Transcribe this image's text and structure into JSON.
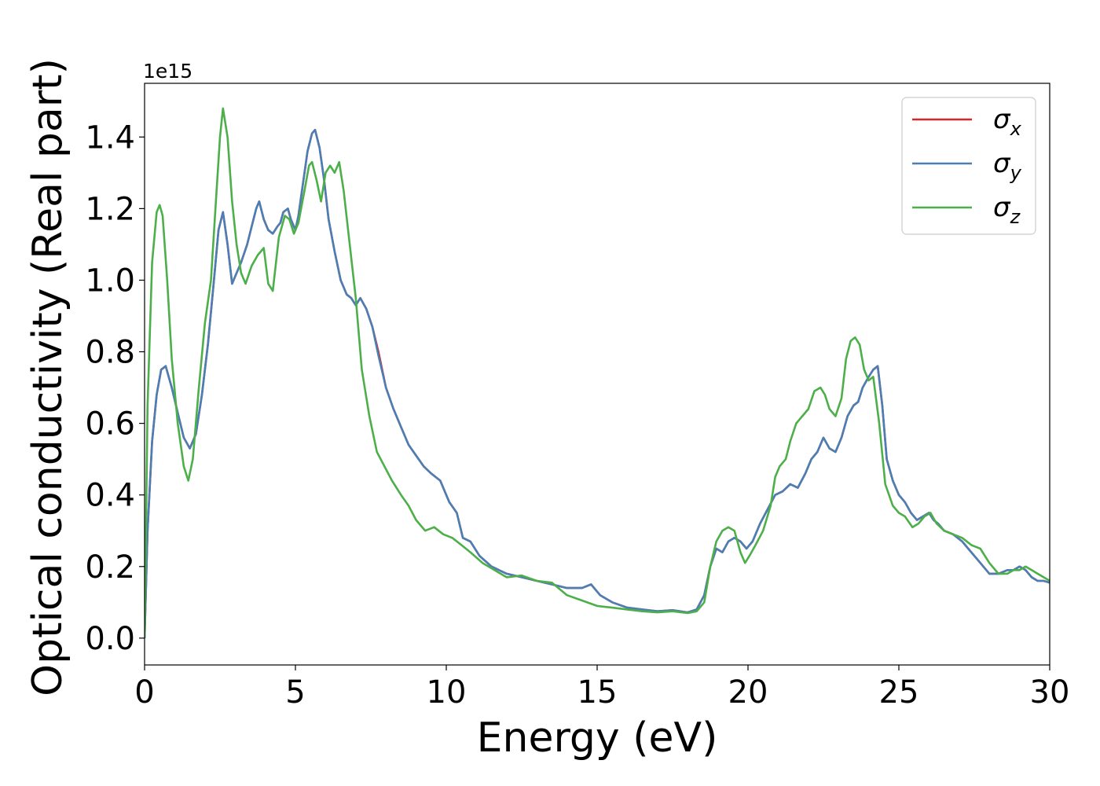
{
  "chart_data": {
    "type": "line",
    "xlabel": "Energy (eV)",
    "ylabel": "Optical conductivity (Real part)",
    "offset_text": "1e15",
    "xlim": [
      0,
      30
    ],
    "ylim": [
      -0.075,
      1.55
    ],
    "x_ticks": [
      0,
      5,
      10,
      15,
      20,
      25,
      30
    ],
    "x_tick_labels": [
      "0",
      "5",
      "10",
      "15",
      "20",
      "25",
      "30"
    ],
    "y_ticks": [
      0.0,
      0.2,
      0.4,
      0.6,
      0.8,
      1.0,
      1.2,
      1.4
    ],
    "y_tick_labels": [
      "0.0",
      "0.2",
      "0.4",
      "0.6",
      "0.8",
      "1.0",
      "1.2",
      "1.4"
    ],
    "grid": false,
    "legend_position": "top-right",
    "series": [
      {
        "name": "σx",
        "name_base": "σ",
        "name_sub": "x",
        "color": "#d62728",
        "x": [
          0,
          0.1,
          0.25,
          0.4,
          0.55,
          0.7,
          0.9,
          1.1,
          1.3,
          1.5,
          1.7,
          1.9,
          2.1,
          2.3,
          2.45,
          2.6,
          2.75,
          2.9,
          3.0,
          3.2,
          3.4,
          3.55,
          3.7,
          3.8,
          3.95,
          4.1,
          4.25,
          4.4,
          4.5,
          4.6,
          4.75,
          4.85,
          5.0,
          5.1,
          5.25,
          5.4,
          5.55,
          5.65,
          5.8,
          5.95,
          6.1,
          6.3,
          6.5,
          6.7,
          6.85,
          7.0,
          7.15,
          7.35,
          7.55,
          7.75,
          8.0,
          8.25,
          8.5,
          8.75,
          9.0,
          9.25,
          9.5,
          9.8,
          10.1,
          10.35,
          10.55,
          10.8,
          11.1,
          11.5,
          12.0,
          12.5,
          13.0,
          13.5,
          14.0,
          14.5,
          14.8,
          15.1,
          15.5,
          16.0,
          16.5,
          17.0,
          17.5,
          18.0,
          18.3,
          18.55,
          18.75,
          18.95,
          19.15,
          19.35,
          19.55,
          19.75,
          19.95,
          20.15,
          20.4,
          20.65,
          20.9,
          21.15,
          21.4,
          21.65,
          21.9,
          22.1,
          22.3,
          22.5,
          22.7,
          22.9,
          23.1,
          23.3,
          23.5,
          23.65,
          23.8,
          24.0,
          24.15,
          24.3,
          24.45,
          24.6,
          24.8,
          25.0,
          25.2,
          25.4,
          25.6,
          25.8,
          26.0,
          26.15,
          26.3,
          26.5,
          26.8,
          27.1,
          27.4,
          27.7,
          28.0,
          28.3,
          28.6,
          28.8,
          29.0,
          29.2,
          29.4,
          29.6,
          29.8,
          30.0
        ],
        "y": [
          0.0,
          0.3,
          0.55,
          0.68,
          0.75,
          0.76,
          0.7,
          0.63,
          0.56,
          0.53,
          0.57,
          0.68,
          0.82,
          1.0,
          1.14,
          1.19,
          1.1,
          0.99,
          1.01,
          1.05,
          1.1,
          1.15,
          1.2,
          1.22,
          1.17,
          1.14,
          1.13,
          1.15,
          1.16,
          1.19,
          1.2,
          1.17,
          1.14,
          1.18,
          1.27,
          1.36,
          1.41,
          1.42,
          1.37,
          1.28,
          1.17,
          1.08,
          1.0,
          0.96,
          0.95,
          0.93,
          0.95,
          0.92,
          0.87,
          0.8,
          0.7,
          0.64,
          0.59,
          0.54,
          0.51,
          0.48,
          0.46,
          0.44,
          0.38,
          0.35,
          0.28,
          0.27,
          0.23,
          0.2,
          0.18,
          0.17,
          0.16,
          0.15,
          0.14,
          0.14,
          0.15,
          0.12,
          0.1,
          0.085,
          0.08,
          0.075,
          0.078,
          0.072,
          0.08,
          0.12,
          0.2,
          0.25,
          0.24,
          0.27,
          0.28,
          0.27,
          0.25,
          0.27,
          0.32,
          0.36,
          0.4,
          0.41,
          0.43,
          0.42,
          0.46,
          0.5,
          0.52,
          0.56,
          0.53,
          0.52,
          0.56,
          0.62,
          0.65,
          0.66,
          0.7,
          0.73,
          0.75,
          0.76,
          0.65,
          0.5,
          0.44,
          0.4,
          0.38,
          0.35,
          0.33,
          0.34,
          0.35,
          0.33,
          0.32,
          0.3,
          0.29,
          0.27,
          0.24,
          0.21,
          0.18,
          0.18,
          0.19,
          0.19,
          0.2,
          0.19,
          0.17,
          0.16,
          0.16,
          0.155
        ]
      },
      {
        "name": "σy",
        "name_base": "σ",
        "name_sub": "y",
        "color": "#4a7fb5",
        "x": [
          0,
          0.1,
          0.25,
          0.4,
          0.55,
          0.7,
          0.9,
          1.1,
          1.3,
          1.5,
          1.7,
          1.9,
          2.1,
          2.3,
          2.45,
          2.6,
          2.75,
          2.9,
          3.0,
          3.2,
          3.4,
          3.55,
          3.7,
          3.8,
          3.95,
          4.1,
          4.25,
          4.4,
          4.5,
          4.6,
          4.75,
          4.85,
          5.0,
          5.1,
          5.25,
          5.4,
          5.55,
          5.65,
          5.8,
          5.95,
          6.1,
          6.3,
          6.5,
          6.7,
          6.85,
          7.0,
          7.15,
          7.35,
          7.55,
          7.75,
          8.0,
          8.25,
          8.5,
          8.75,
          9.0,
          9.25,
          9.5,
          9.8,
          10.1,
          10.35,
          10.55,
          10.8,
          11.1,
          11.5,
          12.0,
          12.5,
          13.0,
          13.5,
          14.0,
          14.5,
          14.8,
          15.1,
          15.5,
          16.0,
          16.5,
          17.0,
          17.5,
          18.0,
          18.3,
          18.55,
          18.75,
          18.95,
          19.15,
          19.35,
          19.55,
          19.75,
          19.95,
          20.15,
          20.4,
          20.65,
          20.9,
          21.15,
          21.4,
          21.65,
          21.9,
          22.1,
          22.3,
          22.5,
          22.7,
          22.9,
          23.1,
          23.3,
          23.5,
          23.65,
          23.8,
          24.0,
          24.15,
          24.3,
          24.45,
          24.6,
          24.8,
          25.0,
          25.2,
          25.4,
          25.6,
          25.8,
          26.0,
          26.15,
          26.3,
          26.5,
          26.8,
          27.1,
          27.4,
          27.7,
          28.0,
          28.3,
          28.6,
          28.8,
          29.0,
          29.2,
          29.4,
          29.6,
          29.8,
          30.0
        ],
        "y": [
          0.0,
          0.3,
          0.55,
          0.68,
          0.75,
          0.76,
          0.7,
          0.63,
          0.56,
          0.53,
          0.57,
          0.68,
          0.82,
          1.0,
          1.14,
          1.19,
          1.1,
          0.99,
          1.01,
          1.05,
          1.1,
          1.15,
          1.2,
          1.22,
          1.17,
          1.14,
          1.13,
          1.15,
          1.16,
          1.19,
          1.2,
          1.17,
          1.14,
          1.18,
          1.27,
          1.36,
          1.41,
          1.42,
          1.37,
          1.28,
          1.17,
          1.08,
          1.0,
          0.96,
          0.95,
          0.93,
          0.95,
          0.92,
          0.87,
          0.79,
          0.7,
          0.64,
          0.59,
          0.54,
          0.51,
          0.48,
          0.46,
          0.44,
          0.38,
          0.35,
          0.28,
          0.27,
          0.23,
          0.2,
          0.18,
          0.17,
          0.16,
          0.15,
          0.14,
          0.14,
          0.15,
          0.12,
          0.1,
          0.085,
          0.08,
          0.075,
          0.078,
          0.072,
          0.08,
          0.12,
          0.2,
          0.25,
          0.24,
          0.27,
          0.28,
          0.27,
          0.25,
          0.27,
          0.32,
          0.36,
          0.4,
          0.41,
          0.43,
          0.42,
          0.46,
          0.5,
          0.52,
          0.56,
          0.53,
          0.52,
          0.56,
          0.62,
          0.65,
          0.66,
          0.7,
          0.73,
          0.75,
          0.76,
          0.65,
          0.5,
          0.44,
          0.4,
          0.38,
          0.35,
          0.33,
          0.34,
          0.35,
          0.33,
          0.32,
          0.3,
          0.29,
          0.27,
          0.24,
          0.21,
          0.18,
          0.18,
          0.19,
          0.19,
          0.2,
          0.19,
          0.17,
          0.16,
          0.16,
          0.155
        ]
      },
      {
        "name": "σz",
        "name_base": "σ",
        "name_sub": "z",
        "color": "#4daf4a",
        "x": [
          0,
          0.1,
          0.25,
          0.4,
          0.5,
          0.6,
          0.75,
          0.9,
          1.1,
          1.3,
          1.45,
          1.6,
          1.8,
          2.0,
          2.2,
          2.35,
          2.5,
          2.6,
          2.75,
          2.9,
          3.05,
          3.2,
          3.35,
          3.55,
          3.75,
          3.95,
          4.1,
          4.25,
          4.45,
          4.65,
          4.8,
          4.95,
          5.1,
          5.3,
          5.45,
          5.55,
          5.7,
          5.85,
          6.0,
          6.15,
          6.3,
          6.45,
          6.6,
          6.8,
          7.0,
          7.2,
          7.45,
          7.7,
          7.95,
          8.2,
          8.5,
          8.75,
          9.0,
          9.3,
          9.6,
          9.9,
          10.2,
          10.5,
          10.8,
          11.2,
          11.6,
          12.0,
          12.5,
          13.0,
          13.5,
          14.0,
          14.5,
          15.0,
          15.5,
          16.0,
          16.5,
          17.0,
          17.5,
          18.0,
          18.3,
          18.55,
          18.75,
          18.95,
          19.15,
          19.35,
          19.55,
          19.75,
          19.9,
          20.05,
          20.25,
          20.5,
          20.75,
          20.9,
          21.05,
          21.25,
          21.4,
          21.6,
          21.8,
          22.0,
          22.2,
          22.4,
          22.55,
          22.7,
          22.9,
          23.1,
          23.25,
          23.4,
          23.55,
          23.7,
          23.85,
          24.0,
          24.15,
          24.35,
          24.55,
          24.8,
          25.0,
          25.2,
          25.45,
          25.65,
          25.85,
          26.05,
          26.25,
          26.5,
          26.8,
          27.1,
          27.4,
          27.7,
          28.0,
          28.3,
          28.6,
          28.8,
          29.0,
          29.2,
          29.4,
          29.6,
          29.8,
          30.0
        ],
        "y": [
          0.0,
          0.65,
          1.05,
          1.19,
          1.21,
          1.18,
          1.0,
          0.78,
          0.6,
          0.48,
          0.44,
          0.5,
          0.7,
          0.88,
          1.0,
          1.2,
          1.4,
          1.48,
          1.4,
          1.22,
          1.1,
          1.02,
          0.99,
          1.04,
          1.07,
          1.09,
          0.99,
          0.97,
          1.12,
          1.18,
          1.17,
          1.13,
          1.16,
          1.25,
          1.32,
          1.33,
          1.28,
          1.22,
          1.3,
          1.32,
          1.3,
          1.33,
          1.25,
          1.1,
          0.95,
          0.75,
          0.62,
          0.52,
          0.48,
          0.44,
          0.4,
          0.37,
          0.33,
          0.3,
          0.31,
          0.29,
          0.28,
          0.26,
          0.24,
          0.21,
          0.19,
          0.17,
          0.175,
          0.16,
          0.155,
          0.12,
          0.105,
          0.09,
          0.085,
          0.08,
          0.075,
          0.072,
          0.075,
          0.07,
          0.075,
          0.1,
          0.2,
          0.27,
          0.3,
          0.31,
          0.3,
          0.24,
          0.21,
          0.23,
          0.26,
          0.3,
          0.37,
          0.45,
          0.48,
          0.5,
          0.55,
          0.6,
          0.62,
          0.64,
          0.69,
          0.7,
          0.68,
          0.64,
          0.62,
          0.67,
          0.78,
          0.83,
          0.84,
          0.82,
          0.75,
          0.72,
          0.73,
          0.6,
          0.43,
          0.37,
          0.35,
          0.34,
          0.31,
          0.32,
          0.34,
          0.35,
          0.32,
          0.3,
          0.29,
          0.28,
          0.26,
          0.25,
          0.21,
          0.18,
          0.18,
          0.19,
          0.19,
          0.2,
          0.19,
          0.18,
          0.17,
          0.16
        ]
      }
    ]
  }
}
